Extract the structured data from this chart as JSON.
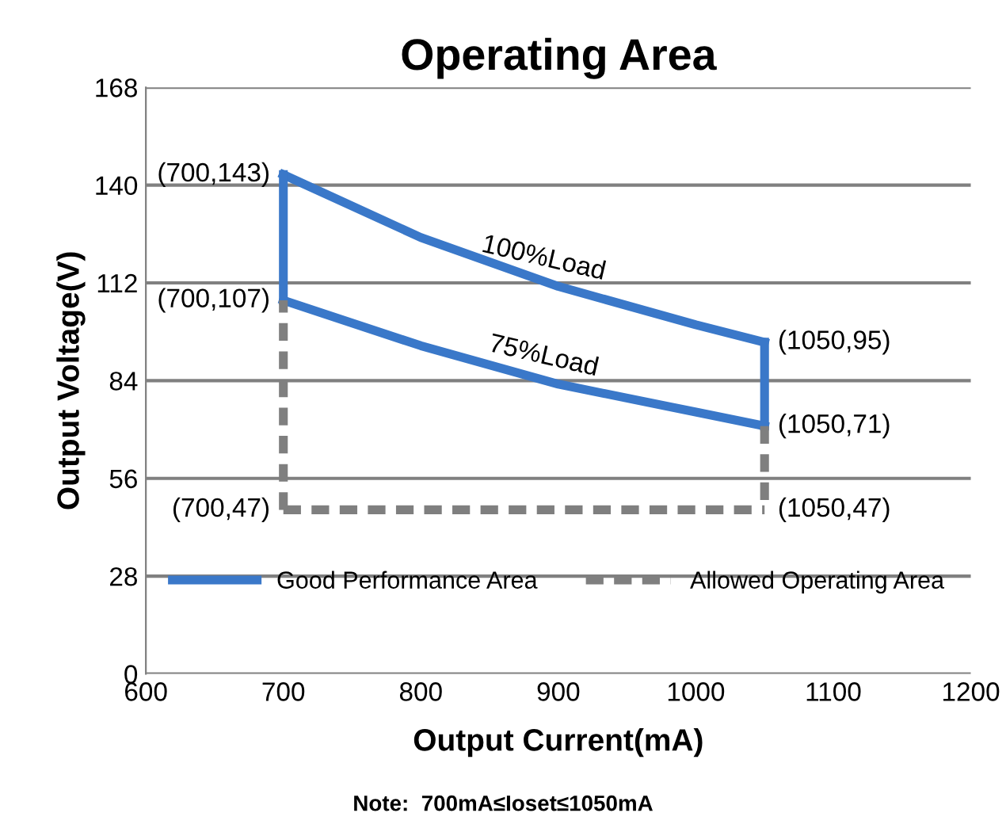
{
  "chart_data": {
    "type": "line",
    "title": "Operating Area",
    "xlabel": "Output Current(mA)",
    "ylabel": "Output Voltage(V)",
    "series": [
      {
        "name": "Good Performance Area",
        "color": "#3a78c9",
        "line_style": "solid",
        "x": [
          700,
          800,
          900,
          1000,
          1050
        ],
        "values": [
          143,
          125,
          111,
          100,
          95
        ]
      },
      {
        "color": "#3a78c9",
        "line_style": "solid",
        "x": [
          700,
          800,
          900,
          1000,
          1050
        ],
        "values": [
          107,
          94,
          83,
          75,
          71
        ]
      },
      {
        "color": "#3a78c9",
        "line_style": "solid",
        "x": [
          700,
          700
        ],
        "values": [
          107,
          143
        ]
      },
      {
        "color": "#3a78c9",
        "line_style": "solid",
        "x": [
          1050,
          1050
        ],
        "values": [
          71,
          95
        ]
      },
      {
        "name": "Allowed Operating Area",
        "color": "#7f7f7f",
        "line_style": "dashed",
        "x": [
          700,
          1050
        ],
        "values": [
          47,
          47
        ]
      },
      {
        "color": "#7f7f7f",
        "line_style": "dashed",
        "x": [
          700,
          700
        ],
        "values": [
          47,
          107
        ]
      },
      {
        "color": "#7f7f7f",
        "line_style": "dashed",
        "x": [
          1050,
          1050
        ],
        "values": [
          71,
          47
        ]
      }
    ],
    "xlim": [
      600,
      1200
    ],
    "xticks": [
      600,
      700,
      800,
      900,
      1000,
      1100,
      1200
    ],
    "ylim": [
      0,
      168
    ],
    "yticks": [
      0,
      28,
      56,
      84,
      112,
      140,
      168
    ],
    "grid": "y",
    "legend": "bottom",
    "marker": "none",
    "annotations": [
      {
        "text": "(700,143)",
        "x": 700,
        "y": 143
      },
      {
        "text": "(700,107)",
        "x": 700,
        "y": 107
      },
      {
        "text": "(700,47)",
        "x": 700,
        "y": 47
      },
      {
        "text": "(1050,95)",
        "x": 1050,
        "y": 95
      },
      {
        "text": "(1050,71)",
        "x": 1050,
        "y": 71
      },
      {
        "text": "(1050,47)",
        "x": 1050,
        "y": 47
      },
      {
        "text": "100%Load",
        "x": 900,
        "y": 111
      },
      {
        "text": "75%Load",
        "x": 900,
        "y": 83
      },
      "Note:  700mA≤Ioset≤1050mA"
    ]
  }
}
